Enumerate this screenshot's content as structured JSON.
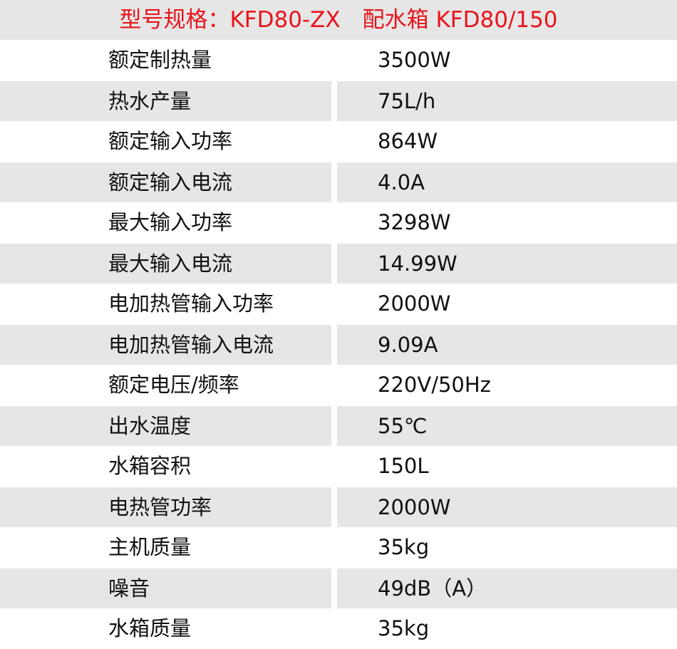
{
  "title": "型号规格：KFD80-ZX　配水箱 KFD80/150",
  "rows": [
    {
      "label": "额定制热量",
      "value": "3500W"
    },
    {
      "label": "热水产量",
      "value": "75L/h"
    },
    {
      "label": "额定输入功率",
      "value": "864W"
    },
    {
      "label": "额定输入电流",
      "value": "4.0A"
    },
    {
      "label": "最大输入功率",
      "value": "3298W"
    },
    {
      "label": "最大输入电流",
      "value": "14.99W"
    },
    {
      "label": "电加热管输入功率",
      "value": "2000W"
    },
    {
      "label": "电加热管输入电流",
      "value": "9.09A"
    },
    {
      "label": "额定电压/频率",
      "value": "220V/50Hz"
    },
    {
      "label": "出水温度",
      "value": "55℃"
    },
    {
      "label": "水箱容积",
      "value": "150L"
    },
    {
      "label": "电热管功率",
      "value": "2000W"
    },
    {
      "label": "主机质量",
      "value": "35kg"
    },
    {
      "label": "噪音",
      "value": "49dB（A）"
    },
    {
      "label": "水箱质量",
      "value": "35kg"
    }
  ],
  "colors": {
    "title": "#e8141b",
    "stripe": "#e6e6e6"
  }
}
